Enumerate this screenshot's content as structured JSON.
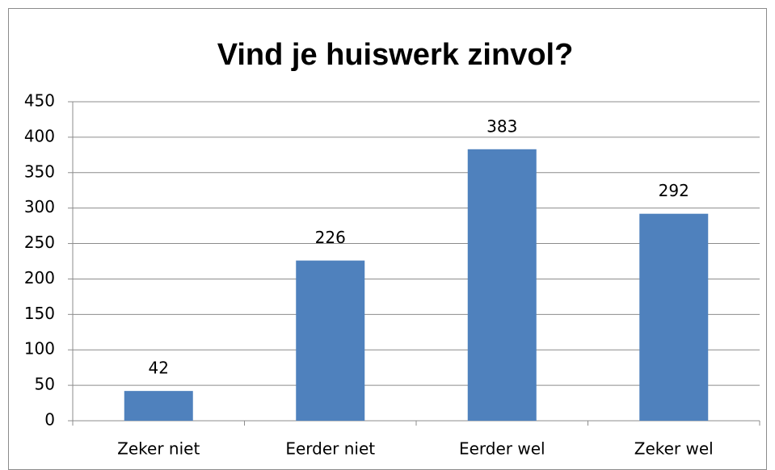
{
  "chart_data": {
    "type": "bar",
    "title": "Vind je huiswerk zinvol?",
    "categories": [
      "Zeker niet",
      "Eerder niet",
      "Eerder wel",
      "Zeker wel"
    ],
    "values": [
      42,
      226,
      383,
      292
    ],
    "color": "#4f81bd",
    "ylim": [
      0,
      450
    ],
    "yticks": [
      0,
      50,
      100,
      150,
      200,
      250,
      300,
      350,
      400,
      450
    ],
    "grid": true
  }
}
